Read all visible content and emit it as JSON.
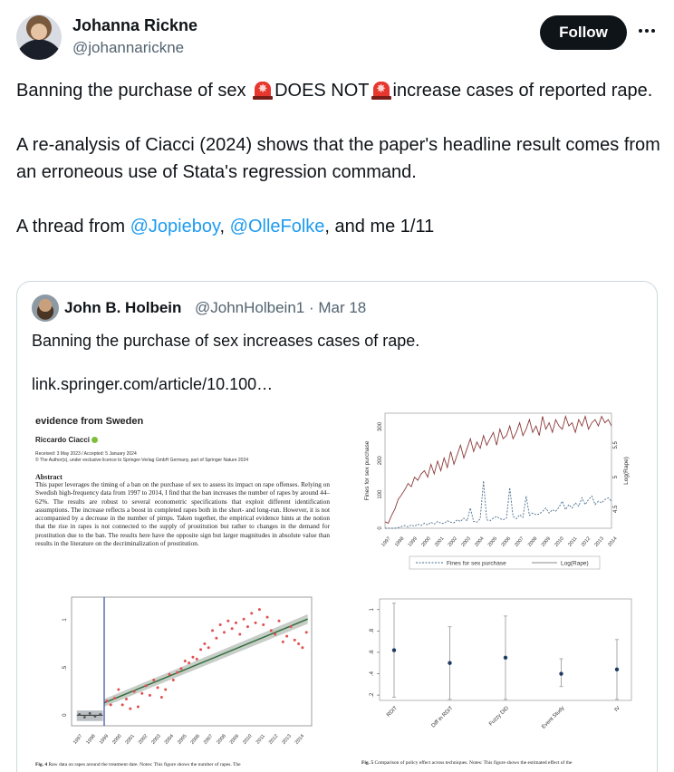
{
  "author": {
    "name": "Johanna Rickne",
    "handle": "@johannarickne",
    "follow_label": "Follow"
  },
  "tweet": {
    "line1_a": "Banning the purchase of sex ",
    "line1_b": "DOES NOT",
    "line1_c": "increase cases of reported rape.",
    "para2": "A re-analysis of Ciacci (2024) shows that the paper's headline result comes from an erroneous use of Stata's regression command.",
    "para3_a": "A thread from ",
    "mention1": "@Jopieboy",
    "sep": ", ",
    "mention2": "@OlleFolke",
    "para3_b": ", and me 1/11"
  },
  "quoted": {
    "name": "John B. Holbein",
    "handle": "@JohnHolbein1 · Mar 18",
    "text": "Banning the purchase of sex increases cases of rape.",
    "link": "link.springer.com/article/10.100…"
  },
  "paper": {
    "title": "evidence from Sweden",
    "author": "Riccardo Ciacci",
    "meta1": "Received: 3 May 2023 / Accepted: 5 January 2024",
    "meta2": "© The Author(s), under exclusive licence to Springer-Verlag GmbH Germany, part of Springer Nature 2024",
    "abstract_heading": "Abstract",
    "abstract": "This paper leverages the timing of a ban on the purchase of sex to assess its impact on rape offenses. Relying on Swedish high-frequency data from 1997 to 2014, I find that the ban increases the number of rapes by around 44–62%. The results are robust to several econometric specifications that exploit different identification assumptions. The increase reflects a boost in completed rapes both in the short- and long-run. However, it is not accompanied by a decrease in the number of pimps. Taken together, the empirical evidence hints at the notion that the rise in rapes is not connected to the supply of prostitution but rather to changes in the demand for prostitution due to the ban. The results here have the opposite sign but larger magnitudes in absolute value than results in the literature on the decriminalization of prostitution.",
    "fig4_caption_b": "Fig. 4",
    "fig4_caption": " Raw data on rapes around the treatment date. Notes: This figure shows the number of rapes. The",
    "fig5_caption_b": "Fig. 5",
    "fig5_caption": " Comparison of policy effect across techniques. Notes: This figure shows the estimated effect of the"
  },
  "chart_data": [
    {
      "type": "scatter",
      "x_ticks": [
        "1997",
        "1998",
        "1999",
        "2000",
        "2001",
        "2002",
        "2003",
        "2004",
        "2005",
        "2006",
        "2007",
        "2008",
        "2009",
        "2010",
        "2011",
        "2012",
        "2013",
        "2014"
      ],
      "y_ticks": [
        "0",
        ".5",
        "1"
      ],
      "ylim": [
        -0.1,
        1.25
      ],
      "points": [
        {
          "x": 1999.3,
          "y": 0.16
        },
        {
          "x": 1999.6,
          "y": 0.12
        },
        {
          "x": 1999.9,
          "y": 0.19
        },
        {
          "x": 2000.2,
          "y": 0.28
        },
        {
          "x": 2000.5,
          "y": 0.12
        },
        {
          "x": 2000.8,
          "y": 0.18
        },
        {
          "x": 2001.1,
          "y": 0.08
        },
        {
          "x": 2001.4,
          "y": 0.26
        },
        {
          "x": 2001.7,
          "y": 0.1
        },
        {
          "x": 2002.0,
          "y": 0.24
        },
        {
          "x": 2002.3,
          "y": 0.32
        },
        {
          "x": 2002.6,
          "y": 0.22
        },
        {
          "x": 2002.9,
          "y": 0.38
        },
        {
          "x": 2003.2,
          "y": 0.3
        },
        {
          "x": 2003.5,
          "y": 0.2
        },
        {
          "x": 2003.8,
          "y": 0.28
        },
        {
          "x": 2004.1,
          "y": 0.44
        },
        {
          "x": 2004.4,
          "y": 0.38
        },
        {
          "x": 2004.7,
          "y": 0.46
        },
        {
          "x": 2005.0,
          "y": 0.5
        },
        {
          "x": 2005.3,
          "y": 0.58
        },
        {
          "x": 2005.6,
          "y": 0.56
        },
        {
          "x": 2005.9,
          "y": 0.62
        },
        {
          "x": 2006.2,
          "y": 0.6
        },
        {
          "x": 2006.5,
          "y": 0.7
        },
        {
          "x": 2006.8,
          "y": 0.76
        },
        {
          "x": 2007.1,
          "y": 0.72
        },
        {
          "x": 2007.4,
          "y": 0.9
        },
        {
          "x": 2007.7,
          "y": 0.82
        },
        {
          "x": 2008.0,
          "y": 0.96
        },
        {
          "x": 2008.3,
          "y": 0.88
        },
        {
          "x": 2008.6,
          "y": 1.0
        },
        {
          "x": 2008.9,
          "y": 0.92
        },
        {
          "x": 2009.2,
          "y": 0.98
        },
        {
          "x": 2009.5,
          "y": 0.86
        },
        {
          "x": 2009.8,
          "y": 1.02
        },
        {
          "x": 2010.1,
          "y": 0.94
        },
        {
          "x": 2010.4,
          "y": 1.08
        },
        {
          "x": 2010.7,
          "y": 0.98
        },
        {
          "x": 2011.0,
          "y": 1.12
        },
        {
          "x": 2011.3,
          "y": 0.96
        },
        {
          "x": 2011.6,
          "y": 1.04
        },
        {
          "x": 2011.9,
          "y": 0.9
        },
        {
          "x": 2012.2,
          "y": 0.86
        },
        {
          "x": 2012.5,
          "y": 1.0
        },
        {
          "x": 2012.8,
          "y": 0.78
        },
        {
          "x": 2013.1,
          "y": 0.84
        },
        {
          "x": 2013.4,
          "y": 0.94
        },
        {
          "x": 2013.7,
          "y": 0.8
        },
        {
          "x": 2014.0,
          "y": 0.76
        },
        {
          "x": 2014.3,
          "y": 0.72
        },
        {
          "x": 2014.6,
          "y": 0.88
        }
      ],
      "pre_points": [
        {
          "x": 1997.2,
          "y": 0.02
        },
        {
          "x": 1997.6,
          "y": -0.01
        },
        {
          "x": 1998.0,
          "y": 0.03
        },
        {
          "x": 1998.4,
          "y": 0.0
        },
        {
          "x": 1998.8,
          "y": 0.02
        }
      ],
      "fit_line": {
        "x0": 1999.1,
        "y0": 0.14,
        "x1": 2014.7,
        "y1": 1.02
      },
      "treatment_x": 1999.1
    },
    {
      "type": "line",
      "x_ticks": [
        "1997",
        "1998",
        "1999",
        "2000",
        "2001",
        "2002",
        "2003",
        "2004",
        "2005",
        "2006",
        "2007",
        "2008",
        "2009",
        "2010",
        "2011",
        "2012",
        "2013",
        "2014"
      ],
      "y_left_ticks": [
        "0",
        "100",
        "200",
        "300"
      ],
      "y_right_ticks": [
        "4.5",
        "5",
        "5.5"
      ],
      "ylabel_left": "Fines for sex purchase",
      "ylabel_right": "Log(Rape)",
      "legend": [
        "Fines for sex purchase",
        "Log(Rape)"
      ],
      "series": [
        {
          "name": "Fines for sex purchase",
          "style": "dashed",
          "color": "#4a6d8c",
          "values": [
            0,
            0,
            0,
            0,
            2,
            5,
            8,
            4,
            10,
            6,
            12,
            8,
            15,
            10,
            18,
            12,
            20,
            15,
            14,
            22,
            18,
            16,
            25,
            20,
            30,
            22,
            60,
            20,
            18,
            28,
            140,
            25,
            22,
            30,
            35,
            28,
            25,
            30,
            120,
            35,
            28,
            40,
            32,
            95,
            38,
            45,
            40,
            42,
            50,
            60,
            45,
            55,
            50,
            62,
            80,
            55,
            70,
            60,
            75,
            65,
            90,
            70,
            85,
            95,
            70,
            80,
            75,
            85,
            90,
            80
          ]
        },
        {
          "name": "Log(Rape)",
          "style": "solid",
          "color": "#8b3a3a",
          "values": [
            4.3,
            4.28,
            4.4,
            4.5,
            4.65,
            4.72,
            4.8,
            4.9,
            4.85,
            5.0,
            4.95,
            5.05,
            5.1,
            5.0,
            5.2,
            5.05,
            5.25,
            5.1,
            5.3,
            5.15,
            5.4,
            5.2,
            5.35,
            5.5,
            5.3,
            5.45,
            5.6,
            5.4,
            5.55,
            5.45,
            5.65,
            5.5,
            5.6,
            5.7,
            5.5,
            5.75,
            5.6,
            5.65,
            5.8,
            5.6,
            5.7,
            5.85,
            5.65,
            5.75,
            5.9,
            5.7,
            5.8,
            5.65,
            5.95,
            5.75,
            5.85,
            5.7,
            5.9,
            5.8,
            5.75,
            5.95,
            5.8,
            5.85,
            5.7,
            5.9,
            5.8,
            5.95,
            5.75,
            5.85,
            5.9,
            5.8,
            5.95,
            5.85,
            5.9,
            5.8
          ]
        }
      ]
    },
    {
      "type": "scatter",
      "categories": [
        "RDiT",
        "Diff in RDiT",
        "Fuzzy DiD",
        "Event Study",
        "IV"
      ],
      "estimates": [
        0.62,
        0.5,
        0.55,
        0.4,
        0.44
      ],
      "ci_low": [
        0.18,
        0.16,
        0.16,
        0.28,
        0.16
      ],
      "ci_high": [
        1.06,
        0.84,
        0.94,
        0.54,
        0.72
      ],
      "y_ticks": [
        ".2",
        ".4",
        ".6",
        ".8",
        "1"
      ],
      "ylim": [
        0.15,
        1.1
      ]
    }
  ]
}
